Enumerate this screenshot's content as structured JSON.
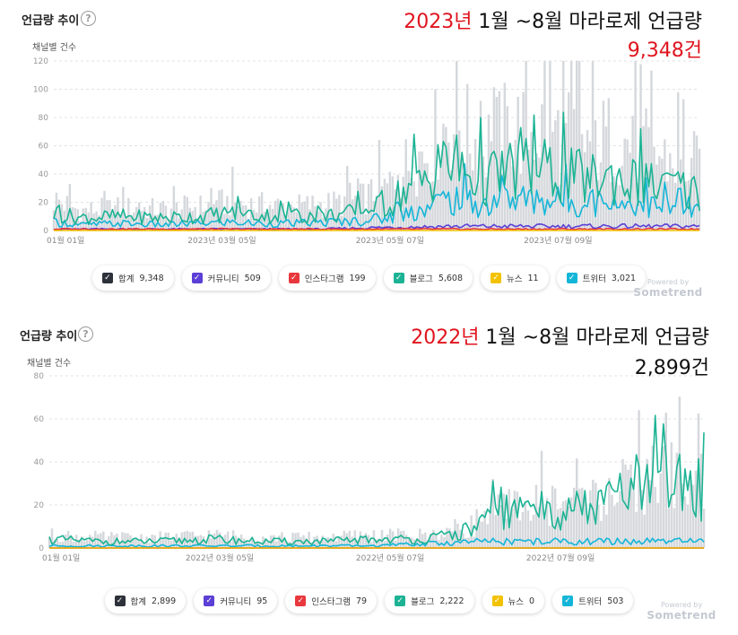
{
  "brand": {
    "powered_by": "Powered by",
    "name": "Sometrend"
  },
  "chart_data": [
    {
      "type": "area",
      "panel_title": "언급량 추이",
      "help_icon": "?",
      "ylabel": "채널별 건수",
      "headline_year": "2023년",
      "headline_rest": " 1월 ~8월 마라로제 언급량",
      "headline_count": "9,348건",
      "ylim": [
        0,
        120
      ],
      "yticks": [
        0,
        20,
        40,
        60,
        80,
        100,
        120
      ],
      "x_range_days": [
        0,
        242
      ],
      "xticks": [
        {
          "day": 0,
          "label": "01월 01일"
        },
        {
          "day": 63,
          "label": "2023년 03월 05일"
        },
        {
          "day": 126,
          "label": "2023년 05월 07일"
        },
        {
          "day": 189,
          "label": "2023년 07월 09일"
        }
      ],
      "series": [
        {
          "name": "합계",
          "total": "9,348",
          "color": "#2d3139",
          "kind": "area",
          "control": [
            [
              0,
              22
            ],
            [
              10,
              14
            ],
            [
              25,
              16
            ],
            [
              40,
              15
            ],
            [
              55,
              17
            ],
            [
              65,
              20
            ],
            [
              75,
              18
            ],
            [
              90,
              17
            ],
            [
              105,
              19
            ],
            [
              115,
              22
            ],
            [
              125,
              30
            ],
            [
              130,
              42
            ],
            [
              135,
              50
            ],
            [
              140,
              58
            ],
            [
              145,
              72
            ],
            [
              150,
              78
            ],
            [
              155,
              68
            ],
            [
              160,
              60
            ],
            [
              165,
              65
            ],
            [
              170,
              70
            ],
            [
              180,
              72
            ],
            [
              190,
              68
            ],
            [
              200,
              62
            ],
            [
              210,
              65
            ],
            [
              220,
              58
            ],
            [
              230,
              50
            ],
            [
              242,
              46
            ]
          ]
        },
        {
          "name": "커뮤니티",
          "total": "509",
          "color": "#5b3fd6",
          "kind": "line",
          "control": [
            [
              0,
              1
            ],
            [
              100,
              1
            ],
            [
              120,
              2
            ],
            [
              150,
              3
            ],
            [
              200,
              3
            ],
            [
              242,
              3
            ]
          ]
        },
        {
          "name": "인스타그램",
          "total": "199",
          "color": "#e8383d",
          "kind": "line",
          "control": [
            [
              0,
              1
            ],
            [
              242,
              1
            ]
          ]
        },
        {
          "name": "블로그",
          "total": "5,608",
          "color": "#1cb394",
          "kind": "line",
          "control": [
            [
              0,
              12
            ],
            [
              10,
              9
            ],
            [
              25,
              10
            ],
            [
              40,
              9
            ],
            [
              55,
              10
            ],
            [
              65,
              12
            ],
            [
              75,
              11
            ],
            [
              90,
              10
            ],
            [
              105,
              11
            ],
            [
              115,
              13
            ],
            [
              125,
              18
            ],
            [
              130,
              26
            ],
            [
              135,
              32
            ],
            [
              140,
              36
            ],
            [
              145,
              45
            ],
            [
              150,
              48
            ],
            [
              155,
              40
            ],
            [
              160,
              35
            ],
            [
              165,
              38
            ],
            [
              170,
              42
            ],
            [
              180,
              44
            ],
            [
              190,
              40
            ],
            [
              200,
              36
            ],
            [
              210,
              38
            ],
            [
              220,
              33
            ],
            [
              230,
              30
            ],
            [
              242,
              28
            ]
          ]
        },
        {
          "name": "뉴스",
          "total": "11",
          "color": "#f2c200",
          "kind": "line",
          "control": [
            [
              0,
              0
            ],
            [
              242,
              0
            ]
          ]
        },
        {
          "name": "트위터",
          "total": "3,021",
          "color": "#14b6d8",
          "kind": "line",
          "control": [
            [
              0,
              6
            ],
            [
              10,
              4
            ],
            [
              25,
              5
            ],
            [
              40,
              4
            ],
            [
              55,
              5
            ],
            [
              65,
              6
            ],
            [
              75,
              5
            ],
            [
              90,
              5
            ],
            [
              105,
              6
            ],
            [
              115,
              7
            ],
            [
              125,
              9
            ],
            [
              130,
              12
            ],
            [
              135,
              14
            ],
            [
              140,
              16
            ],
            [
              145,
              21
            ],
            [
              150,
              22
            ],
            [
              155,
              20
            ],
            [
              160,
              18
            ],
            [
              165,
              20
            ],
            [
              170,
              22
            ],
            [
              180,
              22
            ],
            [
              190,
              21
            ],
            [
              200,
              20
            ],
            [
              210,
              20
            ],
            [
              220,
              18
            ],
            [
              230,
              16
            ],
            [
              242,
              15
            ]
          ]
        }
      ]
    },
    {
      "type": "area",
      "panel_title": "언급량 추이",
      "help_icon": "?",
      "ylabel": "채널별 건수",
      "headline_year": "2022년",
      "headline_rest": " 1월 ~8월 마라로제 언급량",
      "headline_count": "2,899건",
      "ylim": [
        0,
        80
      ],
      "yticks": [
        0,
        20,
        40,
        60,
        80
      ],
      "x_range_days": [
        0,
        242
      ],
      "xticks": [
        {
          "day": 0,
          "label": "01월 01일"
        },
        {
          "day": 63,
          "label": "2022년 03월 05일"
        },
        {
          "day": 126,
          "label": "2022년 05월 07일"
        },
        {
          "day": 189,
          "label": "2022년 07월 09일"
        }
      ],
      "series": [
        {
          "name": "합계",
          "total": "2,899",
          "color": "#2d3139",
          "kind": "area",
          "control": [
            [
              0,
              6
            ],
            [
              20,
              5
            ],
            [
              40,
              5
            ],
            [
              60,
              6
            ],
            [
              80,
              5
            ],
            [
              100,
              5
            ],
            [
              120,
              6
            ],
            [
              140,
              6
            ],
            [
              155,
              10
            ],
            [
              160,
              14
            ],
            [
              170,
              18
            ],
            [
              180,
              20
            ],
            [
              190,
              22
            ],
            [
              200,
              22
            ],
            [
              210,
              26
            ],
            [
              220,
              30
            ],
            [
              230,
              34
            ],
            [
              242,
              30
            ]
          ]
        },
        {
          "name": "커뮤니티",
          "total": "95",
          "color": "#5b3fd6",
          "kind": "line",
          "control": [
            [
              0,
              0
            ],
            [
              242,
              0
            ]
          ]
        },
        {
          "name": "인스타그램",
          "total": "79",
          "color": "#e8383d",
          "kind": "line",
          "control": [
            [
              0,
              0
            ],
            [
              242,
              0
            ]
          ]
        },
        {
          "name": "블로그",
          "total": "2,222",
          "color": "#1cb394",
          "kind": "line",
          "control": [
            [
              0,
              4
            ],
            [
              20,
              3
            ],
            [
              40,
              3
            ],
            [
              60,
              4
            ],
            [
              80,
              3
            ],
            [
              100,
              3
            ],
            [
              120,
              4
            ],
            [
              140,
              4
            ],
            [
              155,
              8
            ],
            [
              160,
              12
            ],
            [
              170,
              16
            ],
            [
              180,
              17
            ],
            [
              190,
              18
            ],
            [
              200,
              18
            ],
            [
              210,
              22
            ],
            [
              220,
              26
            ],
            [
              230,
              30
            ],
            [
              242,
              27
            ]
          ]
        },
        {
          "name": "뉴스",
          "total": "0",
          "color": "#f2c200",
          "kind": "line",
          "control": [
            [
              0,
              0
            ],
            [
              242,
              0
            ]
          ]
        },
        {
          "name": "트위터",
          "total": "503",
          "color": "#14b6d8",
          "kind": "line",
          "control": [
            [
              0,
              1
            ],
            [
              40,
              1
            ],
            [
              80,
              1
            ],
            [
              120,
              1
            ],
            [
              140,
              2
            ],
            [
              160,
              3
            ],
            [
              180,
              3
            ],
            [
              200,
              3
            ],
            [
              220,
              3
            ],
            [
              242,
              3
            ]
          ]
        }
      ]
    }
  ]
}
